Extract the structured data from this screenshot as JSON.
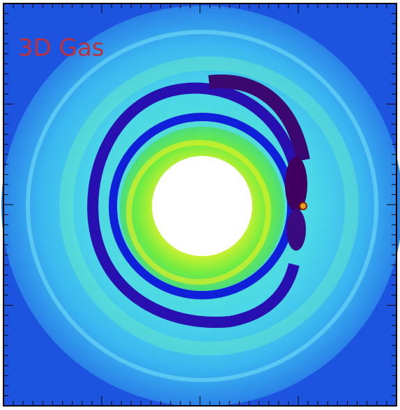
{
  "label": "3D Gas"
}
